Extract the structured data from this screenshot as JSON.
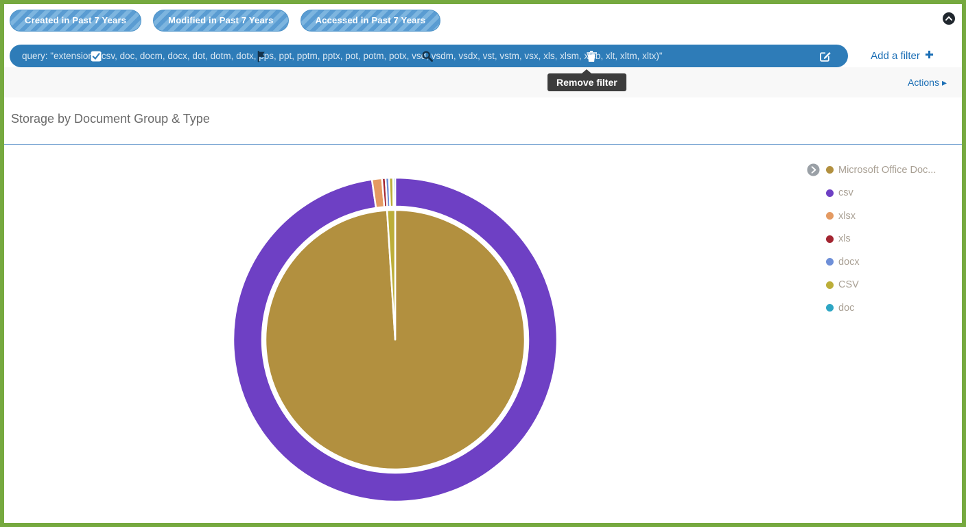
{
  "window": {
    "collapse_icon": "chevron-up-icon"
  },
  "filters": {
    "pills": [
      {
        "label": "Created in Past 7 Years"
      },
      {
        "label": "Modified in Past 7 Years"
      },
      {
        "label": "Accessed in Past 7 Years"
      }
    ],
    "query_text": "query: \"extension: (csv, doc, docm, docx, dot, dotm, dotx, pps, ppt, pptm, pptx, pot, potm, potx, vsd, vsdm, vsdx, vst, vstm, vsx, xls, xlsm, xlsb, xlt, xltm, xltx)\"",
    "bar_icons": [
      "checkbox-icon",
      "flag-icon",
      "magnifier-icon",
      "trash-icon",
      "edit-icon"
    ],
    "add_filter": {
      "label": "Add a filter",
      "icon": "plus-icon"
    },
    "tooltip": "Remove filter"
  },
  "actions": {
    "label": "Actions",
    "icon": "▸"
  },
  "panel": {
    "title": "Storage by Document Group & Type"
  },
  "colors": {
    "frame_green": "#76a93f",
    "filter_blue": "#2e7cb8",
    "link_blue": "#1b6eb5"
  },
  "chart_data": {
    "type": "sunburst",
    "title": "Storage by Document Group & Type",
    "legend_position": "right",
    "values_unit": "percent (estimated from arc angles)",
    "legend": [
      {
        "label": "Microsoft Office Doc...",
        "color": "#b2903f"
      },
      {
        "label": "csv",
        "color": "#6e40c4"
      },
      {
        "label": "xlsx",
        "color": "#e49a62"
      },
      {
        "label": "xls",
        "color": "#a32531"
      },
      {
        "label": "docx",
        "color": "#6e8fd8"
      },
      {
        "label": "CSV",
        "color": "#bcae39"
      },
      {
        "label": "doc",
        "color": "#2ea6c4"
      }
    ],
    "rings": [
      {
        "name": "document-group",
        "segments": [
          {
            "label": "Microsoft Office Doc...",
            "value": 99.0,
            "color": "#b2903f"
          },
          {
            "label": "CSV",
            "value": 1.0,
            "color": "#bcae39"
          }
        ]
      },
      {
        "name": "document-type",
        "segments": [
          {
            "label": "csv",
            "value": 97.7,
            "color": "#6e40c4"
          },
          {
            "label": "xlsx",
            "value": 1.0,
            "color": "#e49a62"
          },
          {
            "label": "xls",
            "value": 0.35,
            "color": "#a32531"
          },
          {
            "label": "docx",
            "value": 0.35,
            "color": "#6e8fd8"
          },
          {
            "label": "CSV",
            "value": 0.4,
            "color": "#bcae39"
          },
          {
            "label": "doc",
            "value": 0.2,
            "color": "#2ea6c4"
          }
        ]
      }
    ]
  }
}
